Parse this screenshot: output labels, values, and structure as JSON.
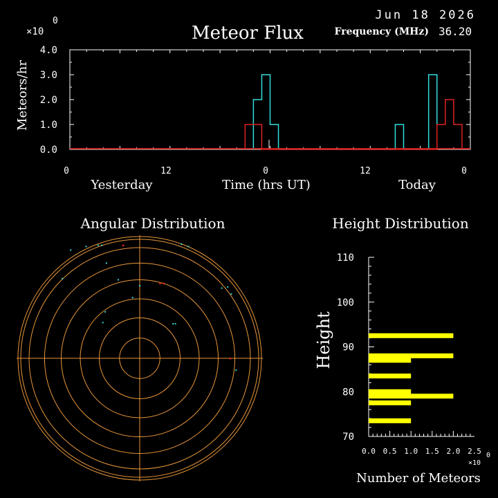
{
  "header": {
    "title": "Meteor Flux",
    "date": "Jun 18 2026",
    "frequency_label": "Frequency (MHz)",
    "frequency_value": "36.20",
    "exp_base": "×10",
    "exp_power": "0"
  },
  "colors": {
    "cyan": "#33dddd",
    "red": "#dd2222",
    "orange": "#e8963a",
    "yellow": "#ffff00",
    "white": "#ffffff"
  },
  "flux": {
    "ylabel": "Meteors/hr",
    "yticks": [
      "4.0",
      "3.0",
      "2.0",
      "1.0",
      "0.0"
    ],
    "xticks": [
      "0",
      "12",
      "0",
      "12",
      "0"
    ],
    "label_yesterday": "Yesterday",
    "label_time": "Time (hrs UT)",
    "label_today": "Today"
  },
  "angular": {
    "title": "Angular Distribution"
  },
  "height": {
    "title": "Height Distribution",
    "ylabel": "Height",
    "xlabel": "Number of Meteors",
    "yticks": [
      "110",
      "100",
      "90",
      "80",
      "70"
    ],
    "xticks": [
      "0.0",
      "0.5",
      "1.0",
      "1.5",
      "2.0",
      "2.5"
    ],
    "exp_base": "×10",
    "exp_power": "0"
  },
  "chart_data": [
    {
      "type": "line",
      "title": "Meteor Flux",
      "ylabel": "Meteors/hr",
      "xlabel": "Time (hrs UT)",
      "ylim": [
        0,
        4
      ],
      "xlim": [
        0,
        48
      ],
      "series": [
        {
          "color": "cyan",
          "steps": [
            [
              22,
              23,
              2
            ],
            [
              23,
              24,
              3
            ],
            [
              24,
              25,
              1
            ],
            [
              39,
              40,
              1
            ],
            [
              43,
              44,
              3
            ]
          ]
        },
        {
          "color": "red",
          "steps": [
            [
              21,
              23,
              1
            ],
            [
              44,
              45,
              1
            ],
            [
              45,
              46,
              2
            ],
            [
              46,
              47,
              1
            ]
          ]
        }
      ]
    },
    {
      "type": "scatter",
      "title": "Angular Distribution",
      "points_cyan": [
        [
          -0.58,
          0.91
        ],
        [
          -0.45,
          0.94
        ],
        [
          -0.35,
          0.95
        ],
        [
          -0.32,
          0.95
        ],
        [
          0.35,
          0.96
        ],
        [
          0.41,
          0.94
        ],
        [
          -0.28,
          0.8
        ],
        [
          -0.65,
          0.67
        ],
        [
          -0.18,
          0.66
        ],
        [
          0.0,
          0.61
        ],
        [
          -0.06,
          0.51
        ],
        [
          0.74,
          0.6
        ],
        [
          0.69,
          0.59
        ],
        [
          0.77,
          0.54
        ],
        [
          -0.29,
          0.39
        ],
        [
          -0.31,
          0.3
        ],
        [
          0.28,
          0.29
        ],
        [
          0.3,
          0.29
        ],
        [
          0.81,
          -0.1
        ]
      ],
      "points_red": [
        [
          -0.14,
          0.95
        ],
        [
          0.2,
          0.63
        ],
        [
          0.17,
          0.63
        ],
        [
          0.76,
          0.0
        ]
      ]
    },
    {
      "type": "bar",
      "title": "Height Distribution",
      "xlabel": "Number of Meteors",
      "ylabel": "Height",
      "ylim": [
        70,
        110
      ],
      "xlim": [
        0,
        2.5
      ],
      "bars": [
        [
          92.5,
          2
        ],
        [
          88,
          2
        ],
        [
          87,
          1
        ],
        [
          83.5,
          1
        ],
        [
          80,
          1
        ],
        [
          79,
          2
        ],
        [
          77.5,
          1
        ],
        [
          73.5,
          1
        ]
      ]
    }
  ]
}
